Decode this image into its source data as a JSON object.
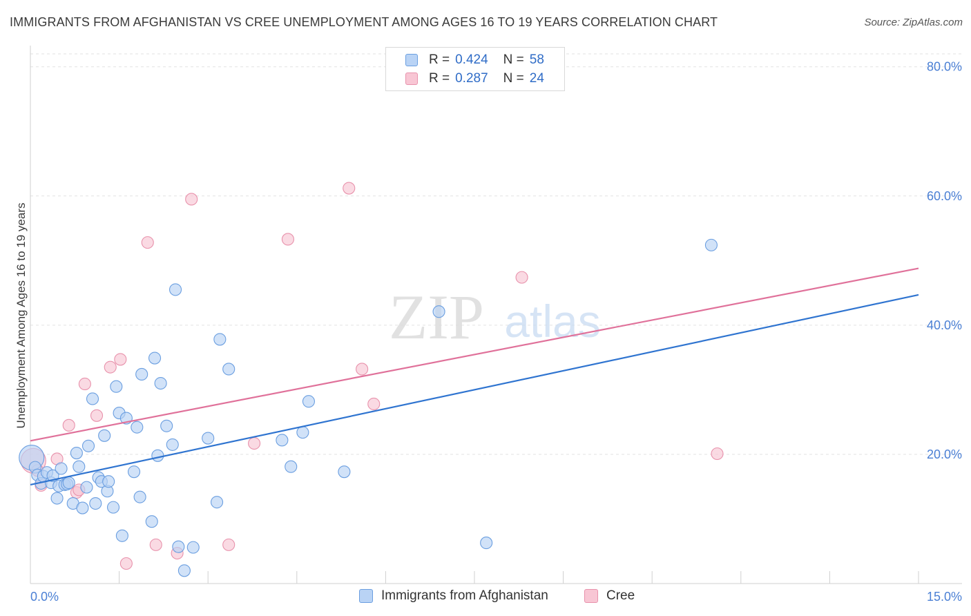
{
  "header": {
    "title": "IMMIGRANTS FROM AFGHANISTAN VS CREE UNEMPLOYMENT AMONG AGES 16 TO 19 YEARS CORRELATION CHART",
    "source": "Source: ZipAtlas.com"
  },
  "watermark": {
    "zip": "ZIP",
    "atlas": "atlas"
  },
  "legend": {
    "rows": [
      {
        "r_label": "R =",
        "r_value": "0.424",
        "n_label": "N =",
        "n_value": "58"
      },
      {
        "r_label": "R =",
        "r_value": "0.287",
        "n_label": "N =",
        "n_value": "24"
      }
    ]
  },
  "bottom_legend": {
    "series1": "Immigrants from Afghanistan",
    "series2": "Cree"
  },
  "colors": {
    "blue_fill": "#b9d3f5",
    "blue_stroke": "#6a9ee0",
    "blue_line": "#2f74d0",
    "pink_fill": "#f8c6d4",
    "pink_stroke": "#e891ab",
    "pink_line": "#e0719a",
    "tick_blue": "#4a7fd4"
  },
  "chart_data": {
    "type": "scatter",
    "title": "IMMIGRANTS FROM AFGHANISTAN VS CREE UNEMPLOYMENT AMONG AGES 16 TO 19 YEARS CORRELATION CHART",
    "xlabel": "",
    "ylabel": "Unemployment Among Ages 16 to 19 years",
    "xlim": [
      0,
      15
    ],
    "ylim": [
      0,
      82
    ],
    "x_tick_labels": {
      "min": "0.0%",
      "max": "15.0%"
    },
    "y_ticks": [
      {
        "value": 20,
        "label": "20.0%"
      },
      {
        "value": 40,
        "label": "40.0%"
      },
      {
        "value": 60,
        "label": "60.0%"
      },
      {
        "value": 80,
        "label": "80.0%"
      }
    ],
    "series": [
      {
        "name": "Immigrants from Afghanistan",
        "color": "blue",
        "trend": {
          "x": [
            0,
            15
          ],
          "y": [
            15.3,
            44.7
          ]
        },
        "points": [
          [
            0.02,
            19.5
          ],
          [
            0.08,
            18.0
          ],
          [
            0.12,
            16.8
          ],
          [
            0.18,
            15.5
          ],
          [
            0.22,
            16.6
          ],
          [
            0.28,
            17.2
          ],
          [
            0.35,
            15.6
          ],
          [
            0.38,
            16.7
          ],
          [
            0.45,
            13.2
          ],
          [
            0.48,
            15.1
          ],
          [
            0.52,
            17.8
          ],
          [
            0.58,
            15.3
          ],
          [
            0.62,
            15.4
          ],
          [
            0.65,
            15.6
          ],
          [
            0.72,
            12.4
          ],
          [
            0.78,
            20.2
          ],
          [
            0.82,
            18.1
          ],
          [
            0.88,
            11.7
          ],
          [
            0.95,
            14.9
          ],
          [
            0.98,
            21.3
          ],
          [
            1.05,
            28.6
          ],
          [
            1.1,
            12.4
          ],
          [
            1.15,
            16.4
          ],
          [
            1.2,
            15.8
          ],
          [
            1.25,
            22.9
          ],
          [
            1.3,
            14.3
          ],
          [
            1.32,
            15.8
          ],
          [
            1.4,
            11.8
          ],
          [
            1.45,
            30.5
          ],
          [
            1.5,
            26.4
          ],
          [
            1.55,
            7.4
          ],
          [
            1.62,
            25.6
          ],
          [
            1.75,
            17.3
          ],
          [
            1.8,
            24.2
          ],
          [
            1.85,
            13.4
          ],
          [
            1.88,
            32.4
          ],
          [
            2.05,
            9.6
          ],
          [
            2.1,
            34.9
          ],
          [
            2.15,
            19.8
          ],
          [
            2.2,
            31.0
          ],
          [
            2.3,
            24.4
          ],
          [
            2.4,
            21.5
          ],
          [
            2.45,
            45.5
          ],
          [
            2.5,
            5.7
          ],
          [
            2.6,
            2.0
          ],
          [
            2.75,
            5.6
          ],
          [
            3.0,
            22.5
          ],
          [
            3.15,
            12.6
          ],
          [
            3.2,
            37.8
          ],
          [
            3.35,
            33.2
          ],
          [
            4.25,
            22.2
          ],
          [
            4.4,
            18.1
          ],
          [
            4.6,
            23.4
          ],
          [
            4.7,
            28.2
          ],
          [
            5.3,
            17.3
          ],
          [
            6.9,
            42.1
          ],
          [
            7.7,
            6.3
          ],
          [
            11.5,
            52.4
          ]
        ]
      },
      {
        "name": "Cree",
        "color": "pink",
        "trend": {
          "x": [
            0,
            15
          ],
          "y": [
            22.1,
            48.8
          ]
        },
        "points": [
          [
            0.05,
            19.0
          ],
          [
            0.12,
            17.5
          ],
          [
            0.18,
            15.2
          ],
          [
            0.45,
            19.3
          ],
          [
            0.65,
            24.5
          ],
          [
            0.78,
            14.1
          ],
          [
            0.82,
            14.5
          ],
          [
            0.92,
            30.9
          ],
          [
            1.12,
            26.0
          ],
          [
            1.35,
            33.5
          ],
          [
            1.52,
            34.7
          ],
          [
            1.62,
            3.1
          ],
          [
            1.98,
            52.8
          ],
          [
            2.12,
            6.0
          ],
          [
            2.48,
            4.7
          ],
          [
            2.72,
            59.5
          ],
          [
            3.35,
            6.0
          ],
          [
            3.78,
            21.7
          ],
          [
            4.35,
            53.3
          ],
          [
            5.38,
            61.2
          ],
          [
            5.6,
            33.2
          ],
          [
            5.8,
            27.8
          ],
          [
            8.3,
            47.4
          ],
          [
            11.6,
            20.1
          ]
        ]
      }
    ]
  }
}
